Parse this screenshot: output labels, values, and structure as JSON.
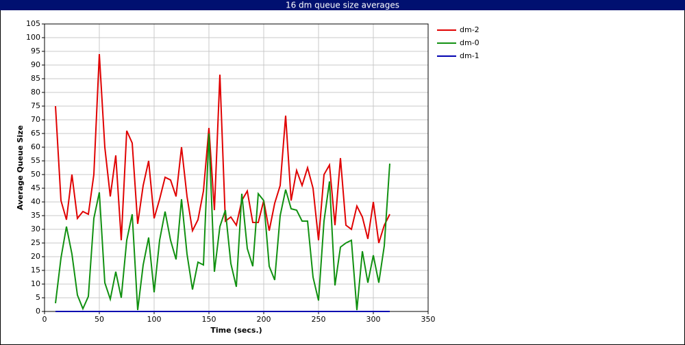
{
  "chart_data": {
    "type": "line",
    "title": "16 dm queue size averages",
    "x_label": "Time (secs.)",
    "y_label": "Average Queue Size",
    "x": [
      10,
      15,
      20,
      25,
      30,
      35,
      40,
      45,
      50,
      55,
      60,
      65,
      70,
      75,
      80,
      85,
      90,
      95,
      100,
      105,
      110,
      115,
      120,
      125,
      130,
      135,
      140,
      145,
      150,
      155,
      160,
      165,
      170,
      175,
      180,
      185,
      190,
      195,
      200,
      205,
      210,
      215,
      220,
      225,
      230,
      235,
      240,
      245,
      250,
      255,
      260,
      265,
      270,
      275,
      280,
      285,
      290,
      295,
      300,
      305,
      310,
      315
    ],
    "series": [
      {
        "name": "dm-2",
        "color": "#e00000",
        "values": [
          75,
          40.5,
          33.5,
          50,
          34,
          36.5,
          35.5,
          50,
          94,
          60,
          42,
          57,
          26,
          66,
          61.5,
          32,
          46,
          55,
          34,
          41,
          49,
          48,
          42,
          60,
          42,
          29.5,
          33.5,
          44,
          67,
          37,
          86.5,
          33,
          34.5,
          31.5,
          40.5,
          44,
          32.5,
          32.5,
          40.5,
          29.5,
          39.5,
          46,
          71.5,
          40.5,
          51.5,
          46,
          52.5,
          45,
          26,
          50,
          53.5,
          31.5,
          56,
          31.5,
          30,
          38.5,
          34.5,
          26.5,
          40,
          25,
          31.5,
          35.5
        ]
      },
      {
        "name": "dm-0",
        "color": "#109010",
        "values": [
          3,
          19.5,
          31,
          21,
          6,
          1,
          5.5,
          34,
          43.5,
          10.5,
          4.5,
          14.5,
          5,
          26,
          35.5,
          0.5,
          17,
          27,
          7,
          26,
          36.5,
          26,
          19,
          41,
          21,
          8,
          18,
          17,
          65,
          14.5,
          31,
          37,
          17.5,
          9,
          43,
          23,
          16.5,
          43,
          40.5,
          16.5,
          11.5,
          35,
          44.5,
          37.5,
          37,
          33,
          33,
          12.5,
          4,
          33,
          47.5,
          9.5,
          23.5,
          25,
          26,
          0.5,
          22,
          10.5,
          20.5,
          10.5,
          24,
          54
        ]
      },
      {
        "name": "dm-1",
        "color": "#0000b0",
        "values": [
          0,
          0,
          0,
          0,
          0,
          0,
          0,
          0,
          0,
          0,
          0,
          0,
          0,
          0,
          0,
          0,
          0,
          0,
          0,
          0,
          0,
          0,
          0,
          0,
          0,
          0,
          0,
          0,
          0,
          0,
          0,
          0,
          0,
          0,
          0,
          0,
          0,
          0,
          0,
          0,
          0,
          0,
          0,
          0,
          0,
          0,
          0,
          0,
          0,
          0,
          0,
          0,
          0,
          0,
          0,
          0,
          0,
          0,
          0,
          0,
          0,
          0
        ]
      }
    ],
    "xlim": [
      0,
      350
    ],
    "xticks": [
      0,
      50,
      100,
      150,
      200,
      250,
      300,
      350
    ],
    "ylim": [
      0,
      105
    ],
    "yticks": [
      0,
      5,
      10,
      15,
      20,
      25,
      30,
      35,
      40,
      45,
      50,
      55,
      60,
      65,
      70,
      75,
      80,
      85,
      90,
      95,
      100,
      105
    ],
    "grid": true,
    "legend": "right"
  }
}
